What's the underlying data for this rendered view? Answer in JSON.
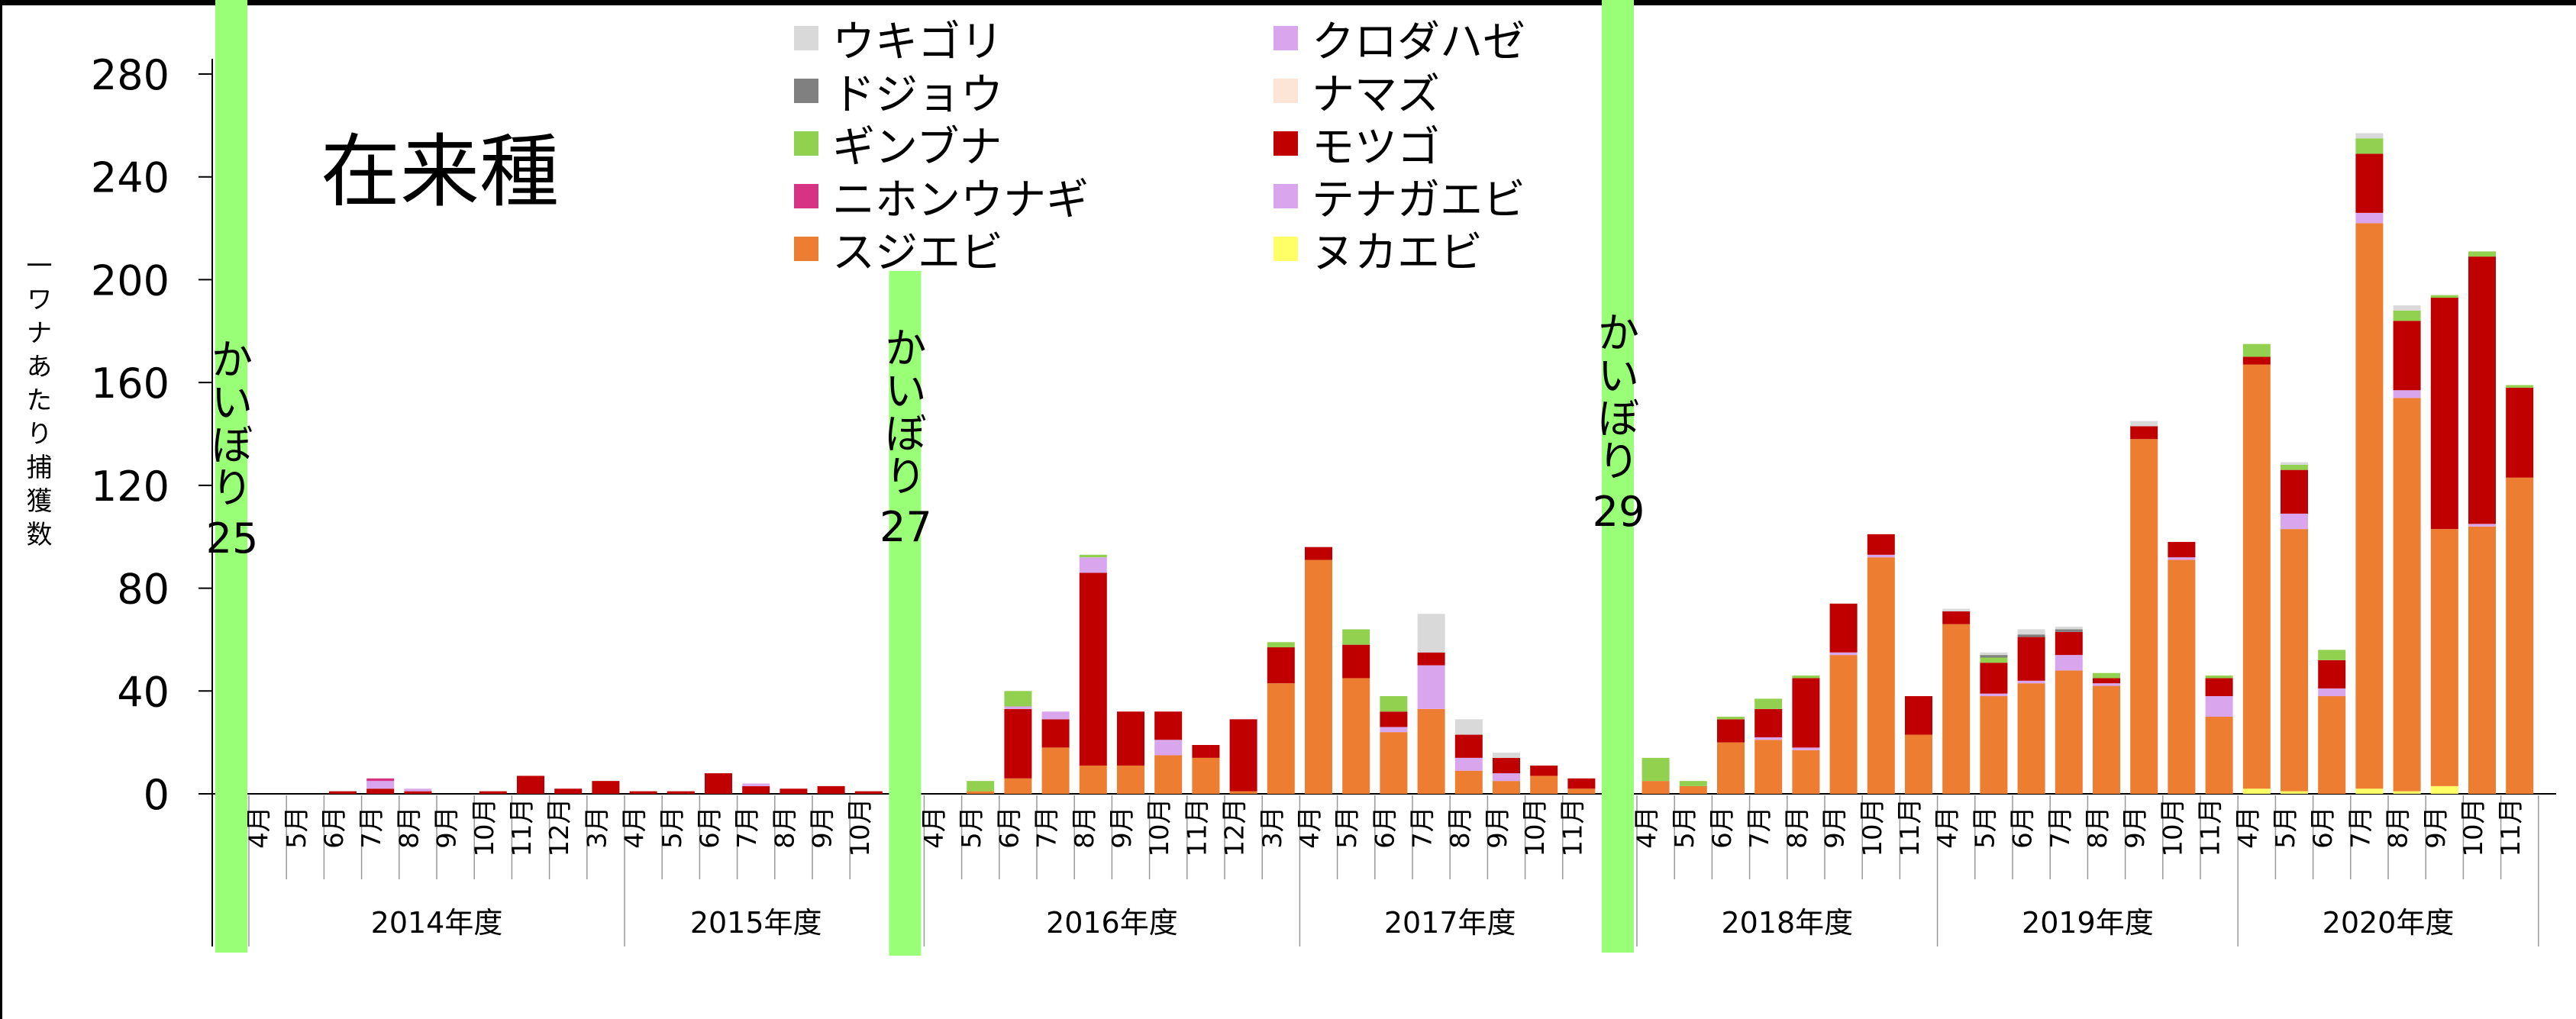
{
  "chart_data": {
    "type": "bar",
    "stacked": true,
    "title": "在来種",
    "ylabel": "一ワナあたり捕獲数",
    "ylim": [
      0,
      280
    ],
    "yticks": [
      0,
      40,
      80,
      120,
      160,
      200,
      240,
      280
    ],
    "legend_placement": "top-center",
    "groups": [
      {
        "label": "2014年度",
        "months": [
          "4月",
          "5月",
          "6月",
          "7月",
          "8月",
          "9月",
          "10月",
          "11月",
          "12月",
          "3月"
        ]
      },
      {
        "label": "2015年度",
        "months": [
          "4月",
          "5月",
          "6月",
          "7月",
          "8月",
          "9月",
          "10月"
        ]
      },
      {
        "label": "2016年度",
        "months": [
          "4月",
          "5月",
          "6月",
          "7月",
          "8月",
          "9月",
          "10月",
          "11月",
          "12月",
          "3月"
        ]
      },
      {
        "label": "2017年度",
        "months": [
          "4月",
          "5月",
          "6月",
          "7月",
          "8月",
          "9月",
          "10月",
          "11月"
        ]
      },
      {
        "label": "2018年度",
        "months": [
          "4月",
          "5月",
          "6月",
          "7月",
          "8月",
          "9月",
          "10月",
          "11月"
        ]
      },
      {
        "label": "2019年度",
        "months": [
          "4月",
          "5月",
          "6月",
          "7月",
          "8月",
          "9月",
          "10月",
          "11月"
        ]
      },
      {
        "label": "2020年度",
        "months": [
          "4月",
          "5月",
          "6月",
          "7月",
          "8月",
          "9月",
          "10月",
          "11月"
        ]
      }
    ],
    "series": [
      {
        "name": "ヌカエビ",
        "color": "#ffff66",
        "values": [
          0,
          0,
          0,
          0,
          0,
          0,
          0,
          0,
          0,
          0,
          0,
          0,
          0,
          0,
          0,
          0,
          0,
          0,
          0,
          0,
          0,
          0,
          0,
          0,
          0,
          0,
          0,
          0,
          0,
          0,
          0,
          0,
          0,
          0,
          0,
          0,
          0,
          0,
          0,
          0,
          0,
          0,
          0,
          0,
          0,
          0,
          0,
          0,
          0,
          0,
          0,
          2,
          1,
          0,
          2,
          1,
          3,
          0,
          0
        ]
      },
      {
        "name": "スジエビ",
        "color": "#ed7d31",
        "values": [
          0,
          0,
          0,
          0,
          0,
          0,
          0,
          0,
          0,
          0,
          0,
          0,
          0,
          0,
          0,
          0,
          0,
          0,
          1,
          6,
          18,
          11,
          11,
          15,
          14,
          1,
          43,
          91,
          45,
          24,
          33,
          9,
          5,
          7,
          2,
          5,
          3,
          20,
          21,
          17,
          54,
          92,
          23,
          66,
          38,
          43,
          48,
          42,
          138,
          91,
          30,
          165,
          102,
          38,
          220,
          153,
          100,
          104,
          123
        ]
      },
      {
        "name": "テナガエビ",
        "color": "#d9a6ee",
        "values": [
          0,
          0,
          0,
          0,
          0,
          0,
          0,
          0,
          0,
          0,
          0,
          0,
          0,
          0,
          0,
          0,
          0,
          0,
          0,
          0,
          0,
          0,
          0,
          6,
          0,
          0,
          0,
          0,
          0,
          2,
          17,
          5,
          3,
          0,
          0,
          0,
          0,
          0,
          1,
          1,
          1,
          1,
          0,
          0,
          1,
          1,
          6,
          1,
          0,
          1,
          8,
          0,
          6,
          3,
          4,
          3,
          0,
          1,
          0
        ]
      },
      {
        "name": "モツゴ",
        "color": "#c00000",
        "values": [
          0,
          0,
          1,
          2,
          1,
          0,
          1,
          7,
          2,
          5,
          1,
          1,
          8,
          3,
          2,
          3,
          1,
          0,
          0,
          27,
          11,
          75,
          21,
          11,
          5,
          28,
          14,
          5,
          13,
          6,
          5,
          9,
          6,
          4,
          4,
          0,
          0,
          9,
          11,
          27,
          19,
          8,
          15,
          5,
          12,
          17,
          9,
          2,
          5,
          6,
          7,
          3,
          17,
          11,
          23,
          27,
          90,
          104,
          35
        ]
      },
      {
        "name": "クロダハゼ",
        "color": "#d9a6ee",
        "values": [
          0,
          0,
          0,
          3,
          1,
          0,
          0,
          0,
          0,
          0,
          0,
          0,
          0,
          1,
          0,
          0,
          0,
          0,
          0,
          1,
          3,
          6,
          0,
          0,
          0,
          0,
          0,
          0,
          0,
          0,
          0,
          0,
          0,
          0,
          0,
          0,
          0,
          0,
          0,
          0,
          0,
          0,
          0,
          0,
          0,
          0,
          0,
          0,
          0,
          0,
          0,
          0,
          0,
          0,
          0,
          0,
          0,
          0,
          0
        ]
      },
      {
        "name": "ニホンウナギ",
        "color": "#d63384",
        "values": [
          0,
          0,
          0,
          1,
          0,
          0,
          0,
          0,
          0,
          0,
          0,
          0,
          0,
          0,
          0,
          0,
          0,
          0,
          0,
          0,
          0,
          0,
          0,
          0,
          0,
          0,
          0,
          0,
          0,
          0,
          0,
          0,
          0,
          0,
          0,
          0,
          0,
          0,
          0,
          0,
          0,
          0,
          0,
          0,
          0,
          0,
          0,
          0,
          0,
          0,
          0,
          0,
          0,
          0,
          0,
          0,
          0,
          0,
          0
        ]
      },
      {
        "name": "ギンブナ",
        "color": "#92d050",
        "values": [
          0,
          0,
          0,
          0,
          0,
          0,
          0,
          0,
          0,
          0,
          0,
          0,
          0,
          0,
          0,
          0,
          0,
          0,
          4,
          6,
          0,
          1,
          0,
          0,
          0,
          0,
          2,
          0,
          6,
          6,
          0,
          0,
          0,
          0,
          0,
          9,
          2,
          1,
          4,
          1,
          0,
          0,
          0,
          0,
          2,
          0,
          0,
          2,
          0,
          0,
          1,
          5,
          2,
          4,
          6,
          4,
          1,
          2,
          1
        ]
      },
      {
        "name": "ナマズ",
        "color": "#fce4d6",
        "values": [
          0,
          0,
          0,
          0,
          0,
          0,
          0,
          0,
          0,
          0,
          0,
          0,
          0,
          0,
          0,
          0,
          0,
          0,
          0,
          0,
          0,
          0,
          0,
          0,
          0,
          0,
          0,
          0,
          0,
          0,
          0,
          0,
          0,
          0,
          0,
          0,
          0,
          0,
          0,
          0,
          0,
          0,
          0,
          0,
          0,
          0,
          0,
          0,
          0,
          0,
          0,
          0,
          0,
          0,
          0,
          0,
          0,
          0,
          0
        ]
      },
      {
        "name": "ドジョウ",
        "color": "#808080",
        "values": [
          0,
          0,
          0,
          0,
          0,
          0,
          0,
          0,
          0,
          0,
          0,
          0,
          0,
          0,
          0,
          0,
          0,
          0,
          0,
          0,
          0,
          0,
          0,
          0,
          0,
          0,
          0,
          0,
          0,
          0,
          0,
          0,
          0,
          0,
          0,
          0,
          0,
          0,
          0,
          0,
          0,
          0,
          0,
          0,
          1,
          1,
          1,
          0,
          0,
          0,
          0,
          0,
          0,
          0,
          0,
          0,
          0,
          0,
          0
        ]
      },
      {
        "name": "ウキゴリ",
        "color": "#d9d9d9",
        "values": [
          0,
          0,
          0,
          0,
          0,
          0,
          0,
          0,
          0,
          0,
          0,
          0,
          0,
          0,
          0,
          0,
          0,
          0,
          0,
          0,
          0,
          0,
          0,
          0,
          0,
          0,
          0,
          0,
          0,
          0,
          15,
          6,
          2,
          0,
          0,
          0,
          0,
          0,
          0,
          0,
          0,
          0,
          0,
          1,
          1,
          2,
          1,
          0,
          2,
          0,
          0,
          0,
          1,
          0,
          2,
          2,
          0,
          0,
          0
        ]
      }
    ],
    "legend": [
      {
        "name": "ウキゴリ",
        "color": "#d9d9d9"
      },
      {
        "name": "ドジョウ",
        "color": "#808080"
      },
      {
        "name": "ギンブナ",
        "color": "#92d050"
      },
      {
        "name": "ニホンウナギ",
        "color": "#d63384"
      },
      {
        "name": "スジエビ",
        "color": "#ed7d31"
      },
      {
        "name": "クロダハゼ",
        "color": "#d9a6ee"
      },
      {
        "name": "ナマズ",
        "color": "#fce4d6"
      },
      {
        "name": "モツゴ",
        "color": "#c00000"
      },
      {
        "name": "テナガエビ",
        "color": "#d9a6ee"
      },
      {
        "name": "ヌカエビ",
        "color": "#ffff66"
      }
    ],
    "annotations": [
      {
        "label": "かいぼり25",
        "color": "#99ff77"
      },
      {
        "label": "かいぼり27",
        "color": "#99ff77"
      },
      {
        "label": "かいぼり29",
        "color": "#99ff77"
      }
    ]
  }
}
